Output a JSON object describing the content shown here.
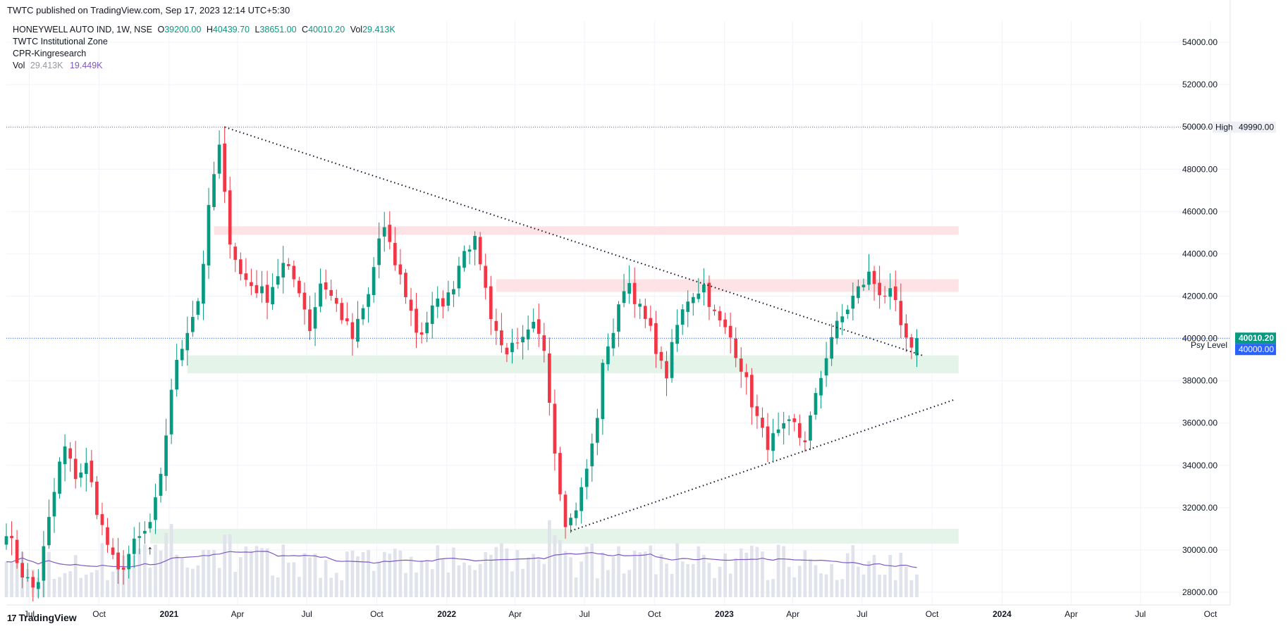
{
  "header": {
    "published_text": "TWTC published on TradingView.com, Sep 17, 2023 12:14 UTC+5:30"
  },
  "legend": {
    "symbol": "HONEYWELL AUTO IND, 1W, NSE",
    "open_label": "O",
    "open": "39200.00",
    "high_label": "H",
    "high": "40439.70",
    "low_label": "L",
    "low": "38651.00",
    "close_label": "C",
    "close": "40010.20",
    "vol_label": "Vol",
    "vol": "29.413K",
    "indicator_1": "TWTC Institutional Zone",
    "indicator_2": "CPR-Kingresearch",
    "vol_row_label": "Vol",
    "vol_row_value": "29.413K",
    "vol_row_ma": "19.449K"
  },
  "footer": {
    "brand": "TradingView"
  },
  "chart_data": {
    "type": "candlestick",
    "symbol": "HONEYWELL AUTO IND",
    "interval": "1W",
    "exchange": "NSE",
    "colors": {
      "up": "#089981",
      "down": "#f23645",
      "volume": "#e0e3eb",
      "volume_ma": "#7e57c2",
      "price_line": "#2962ff",
      "high_line": "#787b86",
      "supply_zone": "#fde3e5",
      "demand_zone": "#e5f4e8"
    },
    "y_axis": {
      "range": [
        27400,
        55000
      ],
      "ticks": [
        "28000.00",
        "30000.00",
        "32000.00",
        "34000.00",
        "36000.00",
        "38000.00",
        "40000.00",
        "42000.00",
        "44000.00",
        "46000.00",
        "48000.00",
        "50000.00",
        "52000.00",
        "54000.00"
      ]
    },
    "x_axis": {
      "range": [
        "2020-06-01",
        "2024-10-27"
      ],
      "ticks": [
        {
          "date": "2020-07-01",
          "label": "Jul"
        },
        {
          "date": "2020-10-01",
          "label": "Oct"
        },
        {
          "date": "2021-01-01",
          "label": "2021"
        },
        {
          "date": "2021-04-01",
          "label": "Apr"
        },
        {
          "date": "2021-07-01",
          "label": "Jul"
        },
        {
          "date": "2021-10-01",
          "label": "Oct"
        },
        {
          "date": "2022-01-01",
          "label": "2022"
        },
        {
          "date": "2022-04-01",
          "label": "Apr"
        },
        {
          "date": "2022-07-01",
          "label": "Jul"
        },
        {
          "date": "2022-10-01",
          "label": "Oct"
        },
        {
          "date": "2023-01-01",
          "label": "2023"
        },
        {
          "date": "2023-04-01",
          "label": "Apr"
        },
        {
          "date": "2023-07-01",
          "label": "Jul"
        },
        {
          "date": "2023-10-01",
          "label": "Oct"
        },
        {
          "date": "2024-01-01",
          "label": "2024"
        },
        {
          "date": "2024-04-01",
          "label": "Apr"
        },
        {
          "date": "2024-07-01",
          "label": "Jul"
        },
        {
          "date": "2024-10-01",
          "label": "Oct"
        }
      ]
    },
    "close_anchors": [
      [
        "2020-06-01",
        31000
      ],
      [
        "2020-06-20",
        29000
      ],
      [
        "2020-07-10",
        28000
      ],
      [
        "2020-07-25",
        31000
      ],
      [
        "2020-08-15",
        35000
      ],
      [
        "2020-08-30",
        33500
      ],
      [
        "2020-09-15",
        34000
      ],
      [
        "2020-10-01",
        31500
      ],
      [
        "2020-10-25",
        28800
      ],
      [
        "2020-11-15",
        30200
      ],
      [
        "2020-12-05",
        31000
      ],
      [
        "2020-12-20",
        33000
      ],
      [
        "2021-01-05",
        38000
      ],
      [
        "2021-01-25",
        40500
      ],
      [
        "2021-02-10",
        42000
      ],
      [
        "2021-02-25",
        47000
      ],
      [
        "2021-03-08",
        49000
      ],
      [
        "2021-03-20",
        45000
      ],
      [
        "2021-04-05",
        43000
      ],
      [
        "2021-04-20",
        42500
      ],
      [
        "2021-05-10",
        42000
      ],
      [
        "2021-05-30",
        43500
      ],
      [
        "2021-06-20",
        42500
      ],
      [
        "2021-07-05",
        40500
      ],
      [
        "2021-07-20",
        42800
      ],
      [
        "2021-08-10",
        41500
      ],
      [
        "2021-08-30",
        40000
      ],
      [
        "2021-09-20",
        42000
      ],
      [
        "2021-10-08",
        45500
      ],
      [
        "2021-10-20",
        44000
      ],
      [
        "2021-11-05",
        42500
      ],
      [
        "2021-11-25",
        40000
      ],
      [
        "2021-12-15",
        41500
      ],
      [
        "2022-01-05",
        42000
      ],
      [
        "2022-01-25",
        44500
      ],
      [
        "2022-02-10",
        44500
      ],
      [
        "2022-02-25",
        41500
      ],
      [
        "2022-03-15",
        39500
      ],
      [
        "2022-04-05",
        39500
      ],
      [
        "2022-04-25",
        40500
      ],
      [
        "2022-05-10",
        39500
      ],
      [
        "2022-05-25",
        34000
      ],
      [
        "2022-06-08",
        31000
      ],
      [
        "2022-06-25",
        32500
      ],
      [
        "2022-07-15",
        35500
      ],
      [
        "2022-07-28",
        39500
      ],
      [
        "2022-08-10",
        40500
      ],
      [
        "2022-08-25",
        43000
      ],
      [
        "2022-09-10",
        41500
      ],
      [
        "2022-09-30",
        40000
      ],
      [
        "2022-10-15",
        38000
      ],
      [
        "2022-10-30",
        40500
      ],
      [
        "2022-11-15",
        42000
      ],
      [
        "2022-12-05",
        42500
      ],
      [
        "2022-12-20",
        41000
      ],
      [
        "2023-01-10",
        40000
      ],
      [
        "2023-01-25",
        38500
      ],
      [
        "2023-02-10",
        36500
      ],
      [
        "2023-02-25",
        35000
      ],
      [
        "2023-03-15",
        35500
      ],
      [
        "2023-04-01",
        36000
      ],
      [
        "2023-04-15",
        35000
      ],
      [
        "2023-04-30",
        37000
      ],
      [
        "2023-05-20",
        40000
      ],
      [
        "2023-06-05",
        41000
      ],
      [
        "2023-06-20",
        42000
      ],
      [
        "2023-07-10",
        43000
      ],
      [
        "2023-07-25",
        42200
      ],
      [
        "2023-08-10",
        42000
      ],
      [
        "2023-08-25",
        40000
      ],
      [
        "2023-09-05",
        39200
      ],
      [
        "2023-09-11",
        40010
      ]
    ],
    "last_candle": {
      "open": 39200.0,
      "high": 40439.7,
      "low": 38651.0,
      "close": 40010.2,
      "volume": "29.413K"
    },
    "volume_ma_label": "19.449K",
    "zones": [
      {
        "kind": "supply",
        "from": "2021-03-01",
        "to": "2023-11-05",
        "low": 44900,
        "high": 45300
      },
      {
        "kind": "supply",
        "from": "2022-03-07",
        "to": "2023-11-05",
        "low": 42200,
        "high": 42800
      },
      {
        "kind": "demand",
        "from": "2021-01-25",
        "to": "2023-11-05",
        "low": 38350,
        "high": 39200
      },
      {
        "kind": "demand",
        "from": "2020-12-07",
        "to": "2023-11-05",
        "low": 30300,
        "high": 31000
      }
    ],
    "trendlines": [
      {
        "name": "upper",
        "from": [
          "2021-03-15",
          49990
        ],
        "to": [
          "2023-09-18",
          39200
        ]
      },
      {
        "name": "lower",
        "from": [
          "2022-06-13",
          30900
        ],
        "to": [
          "2023-10-30",
          37100
        ]
      }
    ],
    "levels": [
      {
        "label": "High",
        "value": "49990.00",
        "price": 49990
      },
      {
        "label": "Psy Level",
        "value": "40000.00",
        "price": 40000
      },
      {
        "label": "",
        "value": "40010.20",
        "price": 40010.2
      }
    ],
    "annotation": {
      "symbol": "↑",
      "date": "2020-12-07",
      "price": 30000
    }
  }
}
